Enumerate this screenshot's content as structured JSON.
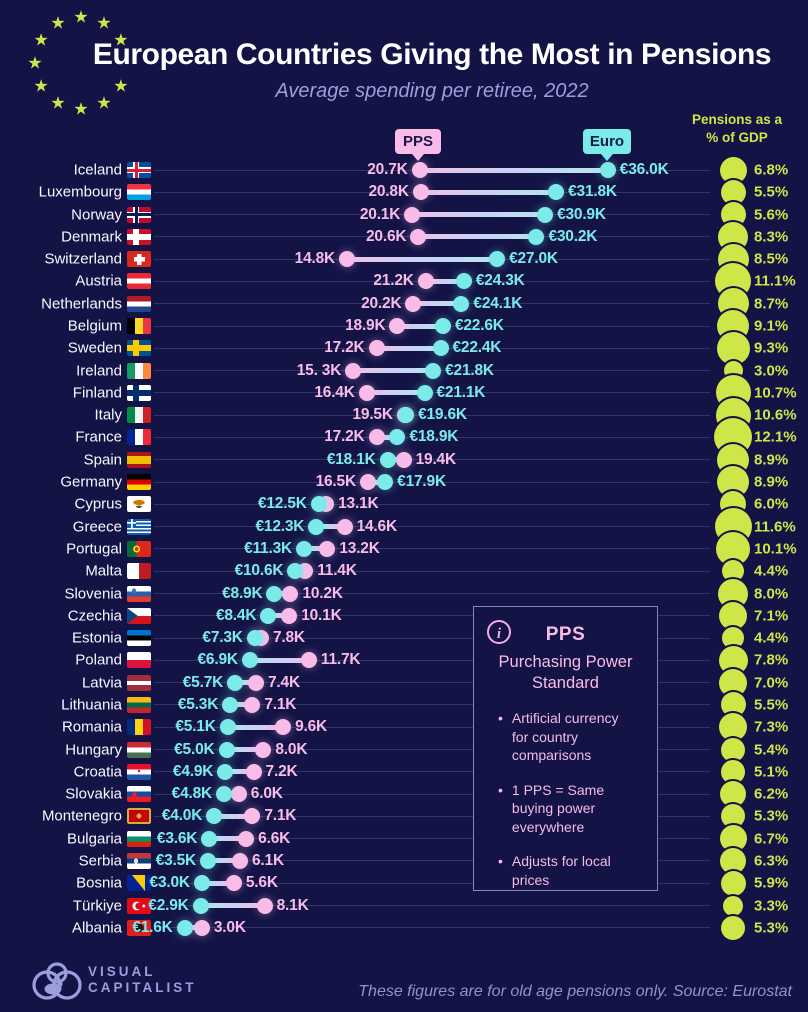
{
  "colors": {
    "background": "#131346",
    "pink": "#F9BCE8",
    "cyan": "#7BEBE9",
    "green": "#CFE649",
    "lavender": "#9A9EDD",
    "white": "#FFFFFF"
  },
  "header": {
    "title": "European Countries Giving the Most in Pensions",
    "subtitle": "Average spending per retiree, 2022",
    "legend_pps": "PPS",
    "legend_euro": "Euro",
    "gdp_header_line1": "Pensions as a",
    "gdp_header_line2": "% of GDP"
  },
  "chart_data": {
    "type": "dumbbell",
    "title": "European Countries Giving the Most in Pensions",
    "subtitle": "Average spending per retiree, 2022",
    "unit": "thousands per retiree (K)",
    "series": [
      {
        "name": "PPS",
        "color": "#F9BCE8"
      },
      {
        "name": "Euro",
        "color": "#7BEBE9"
      }
    ],
    "bubble_series": {
      "name": "Pensions as a % of GDP",
      "color": "#CFE649"
    },
    "x_range_k": [
      0,
      40
    ],
    "legend_position": "top",
    "grid": "faint horizontal row lines",
    "countries": [
      {
        "name": "Iceland",
        "pps": 20.7,
        "euro": 36.0,
        "pps_label": "20.7K",
        "euro_label": "€36.0K",
        "gdp": 6.8,
        "gdp_label": "6.8%"
      },
      {
        "name": "Luxembourg",
        "pps": 20.8,
        "euro": 31.8,
        "pps_label": "20.8K",
        "euro_label": "€31.8K",
        "gdp": 5.5,
        "gdp_label": "5.5%"
      },
      {
        "name": "Norway",
        "pps": 20.1,
        "euro": 30.9,
        "pps_label": "20.1K",
        "euro_label": "€30.9K",
        "gdp": 5.6,
        "gdp_label": "5.6%"
      },
      {
        "name": "Denmark",
        "pps": 20.6,
        "euro": 30.2,
        "pps_label": "20.6K",
        "euro_label": "€30.2K",
        "gdp": 8.3,
        "gdp_label": "8.3%"
      },
      {
        "name": "Switzerland",
        "pps": 14.8,
        "euro": 27.0,
        "pps_label": "14.8K",
        "euro_label": "€27.0K",
        "gdp": 8.5,
        "gdp_label": "8.5%"
      },
      {
        "name": "Austria",
        "pps": 21.2,
        "euro": 24.3,
        "pps_label": "21.2K",
        "euro_label": "€24.3K",
        "gdp": 11.1,
        "gdp_label": "11.1%"
      },
      {
        "name": "Netherlands",
        "pps": 20.2,
        "euro": 24.1,
        "pps_label": "20.2K",
        "euro_label": "€24.1K",
        "gdp": 8.7,
        "gdp_label": "8.7%"
      },
      {
        "name": "Belgium",
        "pps": 18.9,
        "euro": 22.6,
        "pps_label": "18.9K",
        "euro_label": "€22.6K",
        "gdp": 9.1,
        "gdp_label": "9.1%"
      },
      {
        "name": "Sweden",
        "pps": 17.2,
        "euro": 22.4,
        "pps_label": "17.2K",
        "euro_label": "€22.4K",
        "gdp": 9.3,
        "gdp_label": "9.3%"
      },
      {
        "name": "Ireland",
        "pps": 15.3,
        "euro": 21.8,
        "pps_label": "15. 3K",
        "euro_label": "€21.8K",
        "gdp": 3.0,
        "gdp_label": "3.0%"
      },
      {
        "name": "Finland",
        "pps": 16.4,
        "euro": 21.1,
        "pps_label": "16.4K",
        "euro_label": "€21.1K",
        "gdp": 10.7,
        "gdp_label": "10.7%"
      },
      {
        "name": "Italy",
        "pps": 19.5,
        "euro": 19.6,
        "pps_label": "19.5K",
        "euro_label": "€19.6K",
        "gdp": 10.6,
        "gdp_label": "10.6%"
      },
      {
        "name": "France",
        "pps": 17.2,
        "euro": 18.9,
        "pps_label": "17.2K",
        "euro_label": "€18.9K",
        "gdp": 12.1,
        "gdp_label": "12.1%"
      },
      {
        "name": "Spain",
        "pps": 19.4,
        "euro": 18.1,
        "pps_label": "19.4K",
        "euro_label": "€18.1K",
        "gdp": 8.9,
        "gdp_label": "8.9%"
      },
      {
        "name": "Germany",
        "pps": 16.5,
        "euro": 17.9,
        "pps_label": "16.5K",
        "euro_label": "€17.9K",
        "gdp": 8.9,
        "gdp_label": "8.9%"
      },
      {
        "name": "Cyprus",
        "pps": 13.1,
        "euro": 12.5,
        "pps_label": "13.1K",
        "euro_label": "€12.5K",
        "gdp": 6.0,
        "gdp_label": "6.0%"
      },
      {
        "name": "Greece",
        "pps": 14.6,
        "euro": 12.3,
        "pps_label": "14.6K",
        "euro_label": "€12.3K",
        "gdp": 11.6,
        "gdp_label": "11.6%"
      },
      {
        "name": "Portugal",
        "pps": 13.2,
        "euro": 11.3,
        "pps_label": "13.2K",
        "euro_label": "€11.3K",
        "gdp": 10.1,
        "gdp_label": "10.1%"
      },
      {
        "name": "Malta",
        "pps": 11.4,
        "euro": 10.6,
        "pps_label": "11.4K",
        "euro_label": "€10.6K",
        "gdp": 4.4,
        "gdp_label": "4.4%"
      },
      {
        "name": "Slovenia",
        "pps": 10.2,
        "euro": 8.9,
        "pps_label": "10.2K",
        "euro_label": "€8.9K",
        "gdp": 8.0,
        "gdp_label": "8.0%"
      },
      {
        "name": "Czechia",
        "pps": 10.1,
        "euro": 8.4,
        "pps_label": "10.1K",
        "euro_label": "€8.4K",
        "gdp": 7.1,
        "gdp_label": "7.1%"
      },
      {
        "name": "Estonia",
        "pps": 7.8,
        "euro": 7.3,
        "pps_label": "7.8K",
        "euro_label": "€7.3K",
        "gdp": 4.4,
        "gdp_label": "4.4%"
      },
      {
        "name": "Poland",
        "pps": 11.7,
        "euro": 6.9,
        "pps_label": "11.7K",
        "euro_label": "€6.9K",
        "gdp": 7.8,
        "gdp_label": "7.8%"
      },
      {
        "name": "Latvia",
        "pps": 7.4,
        "euro": 5.7,
        "pps_label": "7.4K",
        "euro_label": "€5.7K",
        "gdp": 7.0,
        "gdp_label": "7.0%"
      },
      {
        "name": "Lithuania",
        "pps": 7.1,
        "euro": 5.3,
        "pps_label": "7.1K",
        "euro_label": "€5.3K",
        "gdp": 5.5,
        "gdp_label": "5.5%"
      },
      {
        "name": "Romania",
        "pps": 9.6,
        "euro": 5.1,
        "pps_label": "9.6K",
        "euro_label": "€5.1K",
        "gdp": 7.3,
        "gdp_label": "7.3%"
      },
      {
        "name": "Hungary",
        "pps": 8.0,
        "euro": 5.0,
        "pps_label": "8.0K",
        "euro_label": "€5.0K",
        "gdp": 5.4,
        "gdp_label": "5.4%"
      },
      {
        "name": "Croatia",
        "pps": 7.2,
        "euro": 4.9,
        "pps_label": "7.2K",
        "euro_label": "€4.9K",
        "gdp": 5.1,
        "gdp_label": "5.1%"
      },
      {
        "name": "Slovakia",
        "pps": 6.0,
        "euro": 4.8,
        "pps_label": "6.0K",
        "euro_label": "€4.8K",
        "gdp": 6.2,
        "gdp_label": "6.2%"
      },
      {
        "name": "Montenegro",
        "pps": 7.1,
        "euro": 4.0,
        "pps_label": "7.1K",
        "euro_label": "€4.0K",
        "gdp": 5.3,
        "gdp_label": "5.3%"
      },
      {
        "name": "Bulgaria",
        "pps": 6.6,
        "euro": 3.6,
        "pps_label": "6.6K",
        "euro_label": "€3.6K",
        "gdp": 6.7,
        "gdp_label": "6.7%"
      },
      {
        "name": "Serbia",
        "pps": 6.1,
        "euro": 3.5,
        "pps_label": "6.1K",
        "euro_label": "€3.5K",
        "gdp": 6.3,
        "gdp_label": "6.3%"
      },
      {
        "name": "Bosnia",
        "pps": 5.6,
        "euro": 3.0,
        "pps_label": "5.6K",
        "euro_label": "€3.0K",
        "gdp": 5.9,
        "gdp_label": "5.9%"
      },
      {
        "name": "Türkiye",
        "pps": 8.1,
        "euro": 2.9,
        "pps_label": "8.1K",
        "euro_label": "€2.9K",
        "gdp": 3.3,
        "gdp_label": "3.3%"
      },
      {
        "name": "Albania",
        "pps": 3.0,
        "euro": 1.6,
        "pps_label": "3.0K",
        "euro_label": "€1.6K",
        "gdp": 5.3,
        "gdp_label": "5.3%"
      }
    ]
  },
  "infobox": {
    "title": "PPS",
    "subtitle": "Purchasing Power Standard",
    "bullets": [
      "Artificial currency for country comparisons",
      "1 PPS = Same buying power everywhere",
      "Adjusts for local prices"
    ]
  },
  "footer": {
    "brand_line1": "VISUAL",
    "brand_line2": "CAPITALIST",
    "note": "These figures are for old age pensions only. Source: Eurostat"
  }
}
